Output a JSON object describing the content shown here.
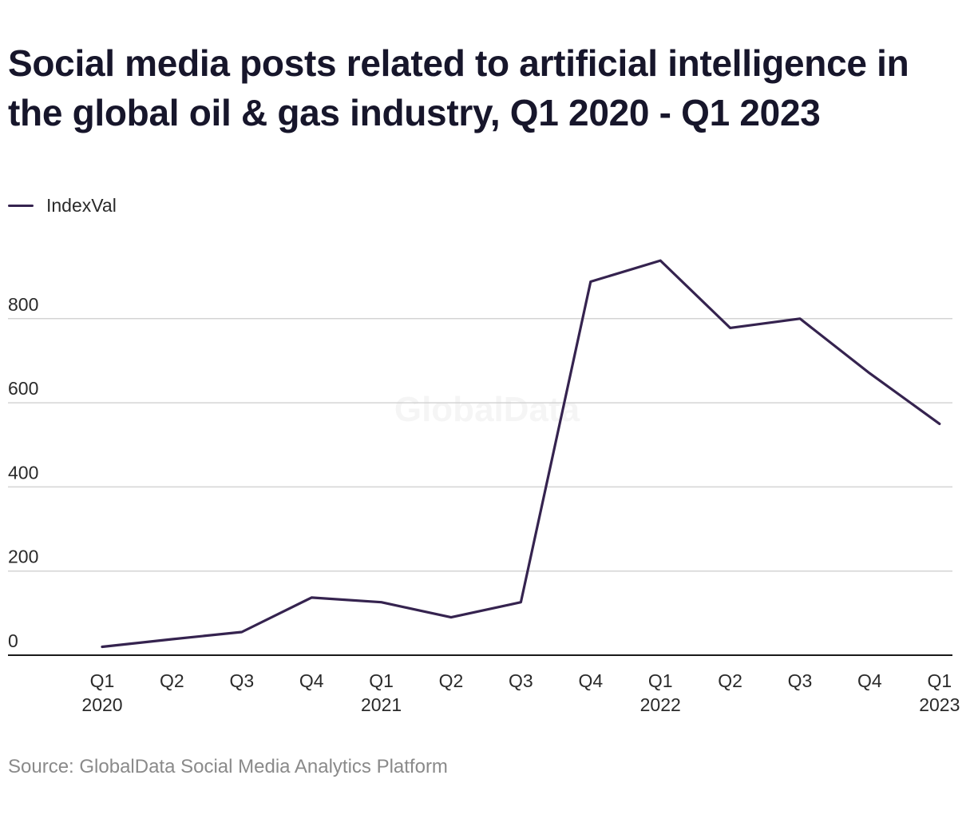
{
  "chart_data": {
    "type": "line",
    "title": "Social media posts related to artificial intelligence in the global oil & gas industry, Q1 2020 - Q1 2023",
    "categories": [
      [
        "Q1",
        "2020"
      ],
      [
        "Q2"
      ],
      [
        "Q3"
      ],
      [
        "Q4"
      ],
      [
        "Q1",
        "2021"
      ],
      [
        "Q2"
      ],
      [
        "Q3"
      ],
      [
        "Q4"
      ],
      [
        "Q1",
        "2022"
      ],
      [
        "Q2"
      ],
      [
        "Q3"
      ],
      [
        "Q4"
      ],
      [
        "Q1",
        "2023"
      ]
    ],
    "series": [
      {
        "name": "IndexVal",
        "color": "#35234f",
        "values": [
          20,
          38,
          55,
          137,
          126,
          90,
          126,
          888,
          938,
          778,
          800,
          670,
          550
        ]
      }
    ],
    "yticks": [
      0,
      200,
      400,
      600,
      800
    ],
    "ylim": [
      0,
      1000
    ],
    "grid": true,
    "legend": "top-left",
    "watermark": "GlobalData",
    "source": "Source: GlobalData Social Media Analytics Platform"
  }
}
